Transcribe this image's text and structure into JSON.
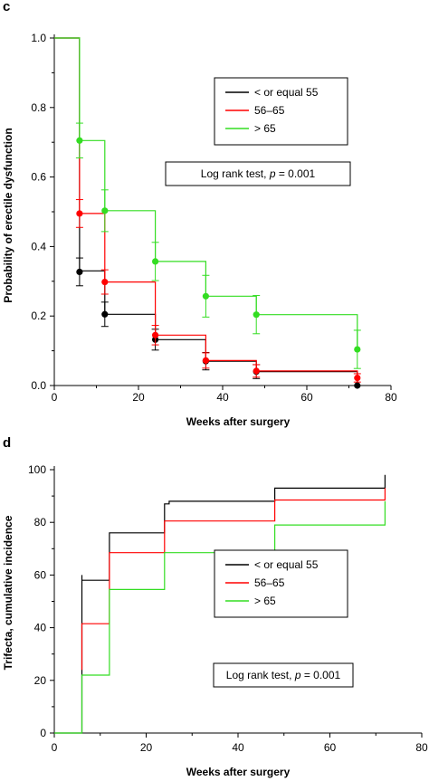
{
  "chart_data": [
    {
      "panel_label": "c",
      "type": "line",
      "step": true,
      "xlabel": "Weeks after surgery",
      "ylabel": "Probability of erectile dysfunction",
      "xlim": [
        0,
        80
      ],
      "ylim": [
        0,
        1.0
      ],
      "xticks": [
        "0",
        "20",
        "40",
        "60",
        "80"
      ],
      "yticks": [
        "0.0",
        "0.2",
        "0.4",
        "0.6",
        "0.8",
        "1.0"
      ],
      "legend_position": "upper-right",
      "annotation": {
        "prefix": "Log rank test, ",
        "var": "p",
        "suffix": " = 0.001"
      },
      "series": [
        {
          "name": "< or equal 55",
          "color": "#000000",
          "steps": [
            [
              0,
              1.0
            ],
            [
              6,
              0.33
            ],
            [
              12,
              0.205
            ],
            [
              24,
              0.132
            ],
            [
              36,
              0.07
            ],
            [
              48,
              0.04
            ],
            [
              72,
              0.0
            ]
          ],
          "points": [
            [
              6,
              0.327,
              0.04
            ],
            [
              12,
              0.205,
              0.035
            ],
            [
              24,
              0.132,
              0.03
            ],
            [
              36,
              0.07,
              0.025
            ],
            [
              48,
              0.04,
              0.02
            ],
            [
              72,
              0.0,
              0.0
            ]
          ]
        },
        {
          "name": "56–65",
          "color": "#ff0000",
          "steps": [
            [
              0,
              1.0
            ],
            [
              6,
              0.495
            ],
            [
              12,
              0.298
            ],
            [
              24,
              0.145
            ],
            [
              36,
              0.072
            ],
            [
              48,
              0.042
            ],
            [
              72,
              0.022
            ]
          ],
          "points": [
            [
              6,
              0.495,
              0.04
            ],
            [
              12,
              0.298,
              0.035
            ],
            [
              24,
              0.145,
              0.028
            ],
            [
              36,
              0.072,
              0.022
            ],
            [
              48,
              0.042,
              0.018
            ],
            [
              72,
              0.022,
              0.012
            ]
          ]
        },
        {
          "name": "> 65",
          "color": "#33dd22",
          "steps": [
            [
              0,
              1.0
            ],
            [
              6,
              0.705
            ],
            [
              12,
              0.503
            ],
            [
              24,
              0.357
            ],
            [
              36,
              0.257
            ],
            [
              48,
              0.204
            ],
            [
              72,
              0.104
            ]
          ],
          "points": [
            [
              6,
              0.705,
              0.05
            ],
            [
              12,
              0.503,
              0.06
            ],
            [
              24,
              0.357,
              0.055
            ],
            [
              36,
              0.257,
              0.06
            ],
            [
              48,
              0.204,
              0.055
            ],
            [
              72,
              0.104,
              0.055
            ]
          ]
        }
      ]
    },
    {
      "panel_label": "d",
      "type": "line",
      "step": true,
      "xlabel": "Weeks after surgery",
      "ylabel": "Trifecta, cumulative incidence",
      "xlim": [
        0,
        80
      ],
      "ylim": [
        0,
        100
      ],
      "xticks": [
        "0",
        "20",
        "40",
        "60",
        "80"
      ],
      "yticks": [
        "0",
        "20",
        "40",
        "60",
        "80",
        "100"
      ],
      "legend_position": "lower-right",
      "annotation": {
        "prefix": "Log rank test, ",
        "var": "p",
        "suffix": " = 0.001"
      },
      "series": [
        {
          "name": "< or equal 55",
          "color": "#000000",
          "steps": [
            [
              0,
              0
            ],
            [
              6,
              58
            ],
            [
              12,
              76
            ],
            [
              24,
              87
            ],
            [
              25,
              88
            ],
            [
              26,
              88
            ],
            [
              48,
              93
            ],
            [
              72,
              98
            ]
          ],
          "steps_detail": [
            [
              0,
              0
            ],
            [
              6,
              0
            ],
            [
              6,
              60
            ],
            [
              6,
              58
            ],
            [
              12,
              58
            ],
            [
              12,
              76
            ],
            [
              24,
              76
            ],
            [
              24,
              87
            ],
            [
              25,
              87
            ],
            [
              25,
              88
            ],
            [
              48,
              88
            ],
            [
              48,
              93
            ],
            [
              72,
              93
            ],
            [
              72,
              98
            ]
          ]
        },
        {
          "name": "56–65",
          "color": "#ff0000",
          "steps_detail": [
            [
              6,
              24
            ],
            [
              6,
              41.5
            ],
            [
              12,
              41.5
            ],
            [
              12,
              68.5
            ],
            [
              24,
              68.5
            ],
            [
              24,
              80.5
            ],
            [
              48,
              80.5
            ],
            [
              48,
              88.5
            ],
            [
              72,
              88.5
            ],
            [
              72,
              93
            ]
          ]
        },
        {
          "name": "> 65",
          "color": "#33dd22",
          "steps_detail": [
            [
              0,
              0
            ],
            [
              6,
              0
            ],
            [
              6,
              22
            ],
            [
              12,
              22
            ],
            [
              12,
              54.5
            ],
            [
              24,
              54.5
            ],
            [
              24,
              68.5
            ],
            [
              48,
              68.5
            ],
            [
              48,
              79
            ],
            [
              72,
              79
            ],
            [
              72,
              88
            ]
          ]
        }
      ]
    }
  ]
}
